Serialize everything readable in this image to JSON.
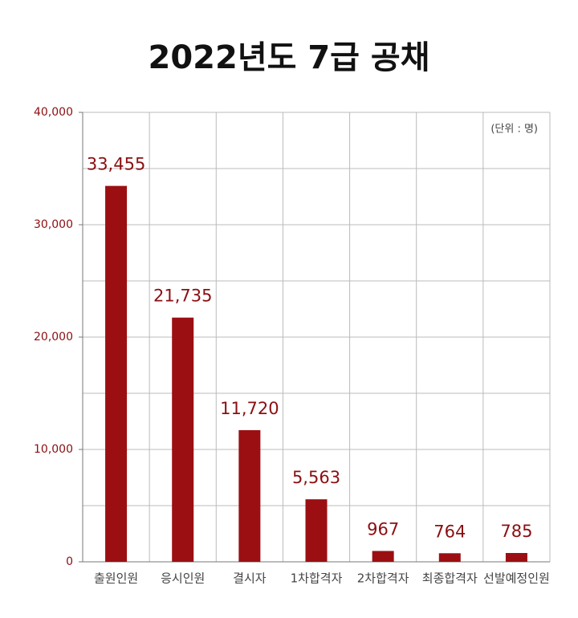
{
  "chart_data": {
    "type": "bar",
    "title": "2022년도 7급 공채",
    "unit_note": "(단위 : 명)",
    "categories": [
      "출원인원",
      "응시인원",
      "결시자",
      "1차합격자",
      "2차합격자",
      "최종합격자",
      "선발예정인원"
    ],
    "values": [
      33455,
      21735,
      11720,
      5563,
      967,
      764,
      785
    ],
    "value_labels": [
      "33,455",
      "21,735",
      "11,720",
      "5,563",
      "967",
      "764",
      "785"
    ],
    "color": "#9b0f12",
    "ylim": [
      0,
      40000
    ],
    "yticks": [
      0,
      {
        "value": 10000,
        "label": "10,000"
      },
      {
        "value": 20000,
        "label": "20,000"
      },
      {
        "value": 30000,
        "label": "30,000"
      },
      {
        "value": 40000,
        "label": "40,000"
      }
    ],
    "minor_yticks": [
      5000,
      15000,
      25000,
      35000
    ],
    "grid": true
  }
}
